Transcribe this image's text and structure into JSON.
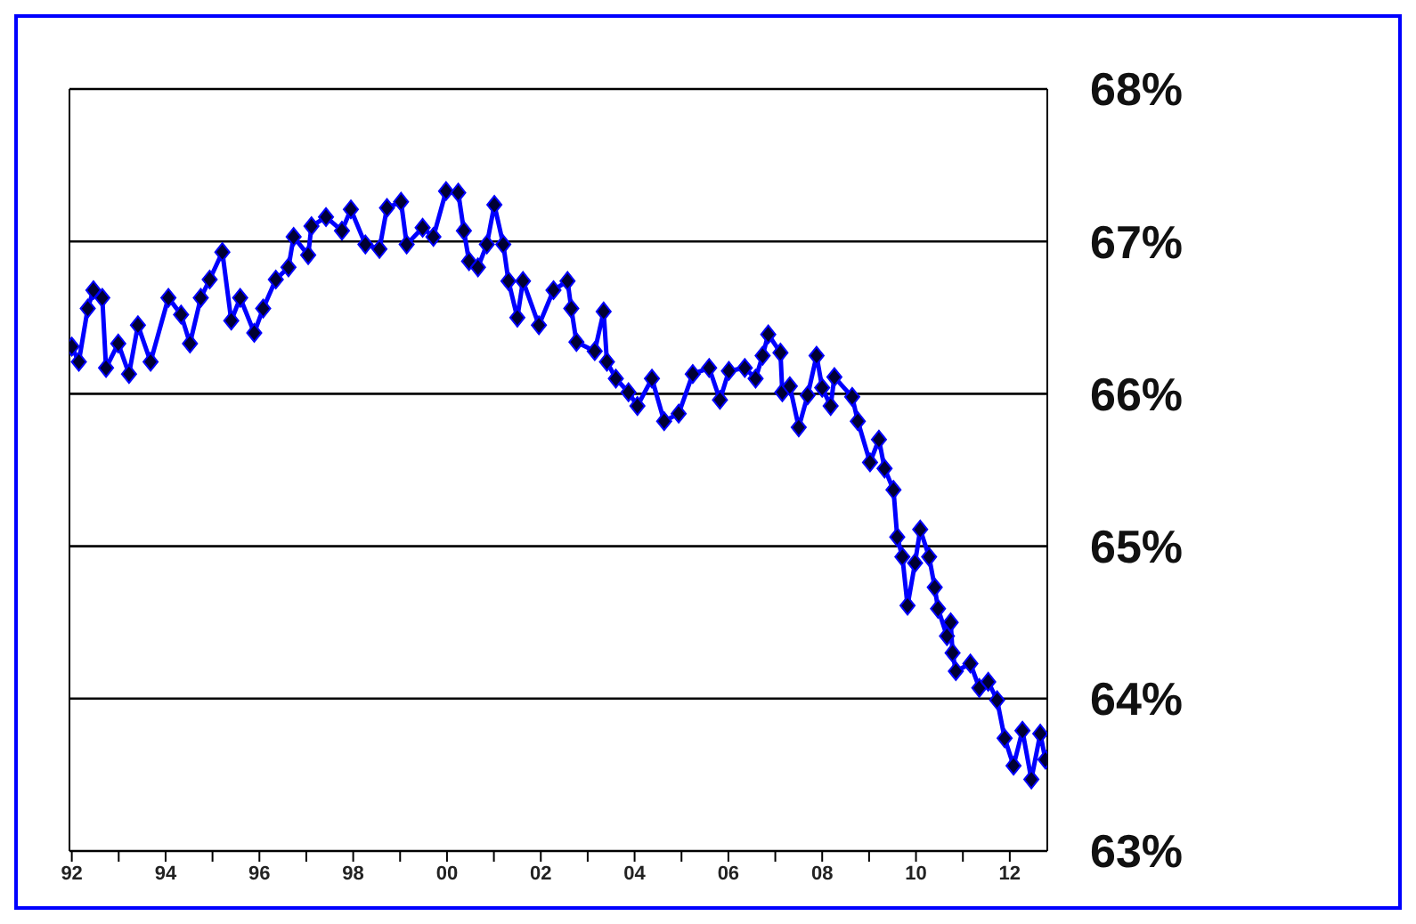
{
  "chart_data": {
    "type": "line",
    "x": [
      1992.0,
      1992.15,
      1992.34,
      1992.46,
      1992.65,
      1992.73,
      1992.99,
      1993.22,
      1993.41,
      1993.68,
      1994.06,
      1994.33,
      1994.52,
      1994.75,
      1994.94,
      1995.21,
      1995.4,
      1995.59,
      1995.89,
      1996.08,
      1996.35,
      1996.62,
      1996.73,
      1997.04,
      1997.11,
      1997.42,
      1997.76,
      1997.95,
      1998.26,
      1998.56,
      1998.72,
      1999.02,
      1999.14,
      1999.48,
      1999.71,
      1999.98,
      2000.24,
      2000.36,
      2000.47,
      2000.66,
      2000.85,
      2001.01,
      2001.2,
      2001.31,
      2001.5,
      2001.62,
      2001.96,
      2002.27,
      2002.57,
      2002.65,
      2002.76,
      2003.15,
      2003.34,
      2003.41,
      2003.6,
      2003.87,
      2004.06,
      2004.37,
      2004.63,
      2004.94,
      2005.24,
      2005.59,
      2005.82,
      2006.01,
      2006.35,
      2006.58,
      2006.73,
      2006.85,
      2007.11,
      2007.15,
      2007.31,
      2007.5,
      2007.69,
      2007.88,
      2008.0,
      2008.18,
      2008.26,
      2008.64,
      2008.76,
      2009.02,
      2009.21,
      2009.33,
      2009.52,
      2009.6,
      2009.71,
      2009.82,
      2009.98,
      2010.09,
      2010.28,
      2010.4,
      2010.47,
      2010.66,
      2010.74,
      2010.78,
      2010.85,
      2011.16,
      2011.35,
      2011.54,
      2011.73,
      2011.89,
      2012.08,
      2012.27,
      2012.46,
      2012.65,
      2012.76
    ],
    "series": [
      {
        "color": "#0000ff",
        "values": [
          66.31,
          66.21,
          66.56,
          66.68,
          66.63,
          66.17,
          66.33,
          66.13,
          66.45,
          66.21,
          66.63,
          66.52,
          66.33,
          66.63,
          66.75,
          66.93,
          66.48,
          66.63,
          66.4,
          66.56,
          66.75,
          66.83,
          67.03,
          66.91,
          67.1,
          67.16,
          67.07,
          67.21,
          66.98,
          66.95,
          67.22,
          67.26,
          66.98,
          67.09,
          67.03,
          67.33,
          67.32,
          67.07,
          66.87,
          66.83,
          66.98,
          67.24,
          66.98,
          66.74,
          66.5,
          66.74,
          66.45,
          66.68,
          66.74,
          66.56,
          66.34,
          66.28,
          66.54,
          66.21,
          66.1,
          66.01,
          65.92,
          66.1,
          65.82,
          65.87,
          66.13,
          66.17,
          65.96,
          66.15,
          66.17,
          66.1,
          66.25,
          66.39,
          66.27,
          66.01,
          66.05,
          65.78,
          65.99,
          66.25,
          66.04,
          65.92,
          66.11,
          65.98,
          65.82,
          65.55,
          65.7,
          65.51,
          65.37,
          65.06,
          64.93,
          64.61,
          64.89,
          65.11,
          64.93,
          64.73,
          64.59,
          64.41,
          64.5,
          64.3,
          64.18,
          64.23,
          64.07,
          64.11,
          63.99,
          63.74,
          63.56,
          63.79,
          63.47,
          63.77,
          63.6
        ]
      }
    ],
    "xlim": [
      1991.95,
      2012.8
    ],
    "xticks": [
      {
        "value": 1992,
        "label": "92"
      },
      {
        "value": 1993,
        "label": null
      },
      {
        "value": 1994,
        "label": "94"
      },
      {
        "value": 1995,
        "label": null
      },
      {
        "value": 1996,
        "label": "96"
      },
      {
        "value": 1997,
        "label": null
      },
      {
        "value": 1998,
        "label": "98"
      },
      {
        "value": 1999,
        "label": null
      },
      {
        "value": 2000,
        "label": "00"
      },
      {
        "value": 2001,
        "label": null
      },
      {
        "value": 2002,
        "label": "02"
      },
      {
        "value": 2003,
        "label": null
      },
      {
        "value": 2004,
        "label": "04"
      },
      {
        "value": 2005,
        "label": null
      },
      {
        "value": 2006,
        "label": "06"
      },
      {
        "value": 2007,
        "label": null
      },
      {
        "value": 2008,
        "label": "08"
      },
      {
        "value": 2009,
        "label": null
      },
      {
        "value": 2010,
        "label": "10"
      },
      {
        "value": 2011,
        "label": null
      },
      {
        "value": 2012,
        "label": "12"
      }
    ],
    "ylim": [
      63,
      68
    ],
    "yticks": [
      {
        "value": 63,
        "label": "63%"
      },
      {
        "value": 64,
        "label": "64%"
      },
      {
        "value": 65,
        "label": "65%"
      },
      {
        "value": 66,
        "label": "66%"
      },
      {
        "value": 67,
        "label": "67%"
      },
      {
        "value": 68,
        "label": "68%"
      }
    ],
    "grid": "y",
    "legend": false,
    "marker": "diamond",
    "line_style": "solid"
  }
}
